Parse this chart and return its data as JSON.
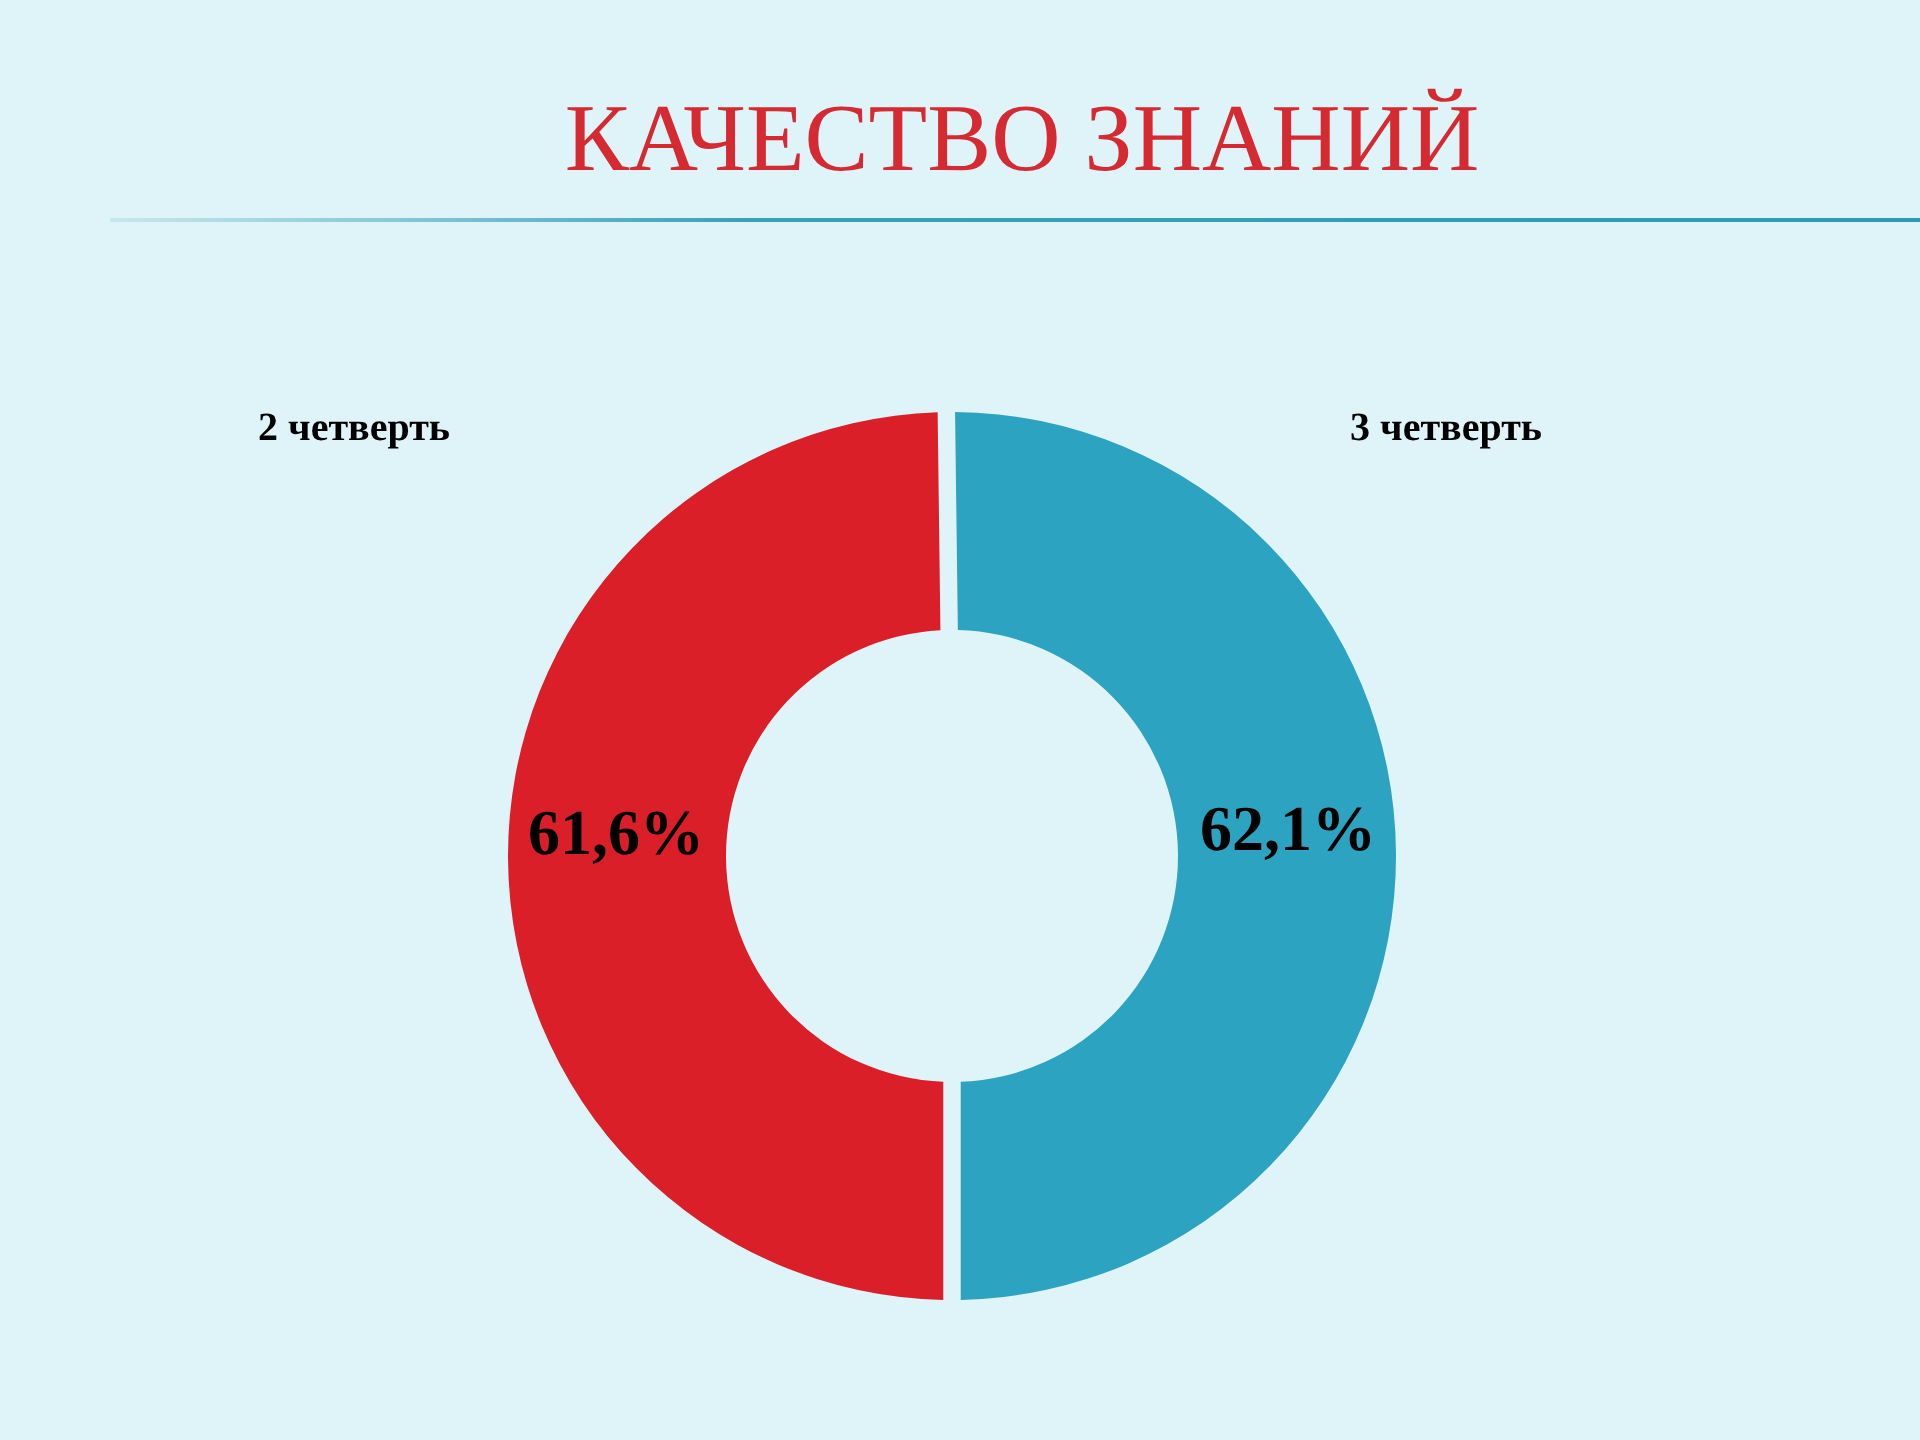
{
  "chart_data": {
    "type": "donut",
    "title": "КАЧЕСТВО ЗНАНИЙ",
    "categories": [
      "2 четверть",
      "3 четверть"
    ],
    "values": [
      61.6,
      62.1
    ],
    "colors": [
      "#da1f28",
      "#2ca3c0"
    ],
    "value_labels": [
      "61,6%",
      "62,1%"
    ]
  }
}
